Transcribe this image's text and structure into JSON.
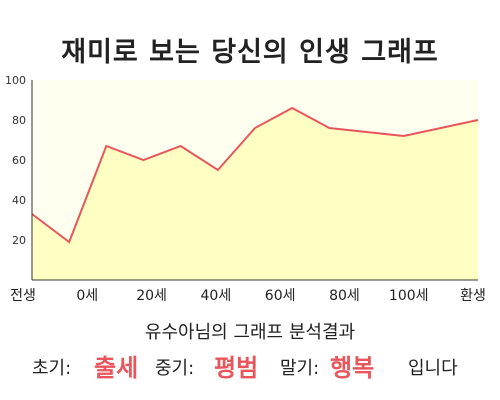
{
  "title": "재미로 보는 당신의 인생 그래프",
  "subtitle": "유수아님의 그래프 분석결과",
  "result": {
    "early_label": "초기:",
    "early_value": "출세",
    "mid_label": "중기:",
    "mid_value": "평범",
    "late_label": "말기:",
    "late_value": "행복",
    "suffix": "입니다"
  },
  "colors": {
    "plot_bg": "#fffff0",
    "fill": "#ffffc4",
    "line": "#e8565c",
    "highlight": "#e8565c"
  },
  "chart_data": {
    "type": "area",
    "title": "",
    "xlabel": "",
    "ylabel": "",
    "ylim": [
      0,
      100
    ],
    "yticks": [
      20,
      40,
      60,
      80,
      100
    ],
    "xticks": [
      "전생",
      "0세",
      "20세",
      "40세",
      "60세",
      "80세",
      "100세",
      "환생"
    ],
    "grid": false,
    "series": [
      {
        "values": [
          33,
          19,
          67,
          60,
          67,
          55,
          76,
          86,
          76,
          74,
          72,
          76,
          80
        ]
      }
    ]
  }
}
